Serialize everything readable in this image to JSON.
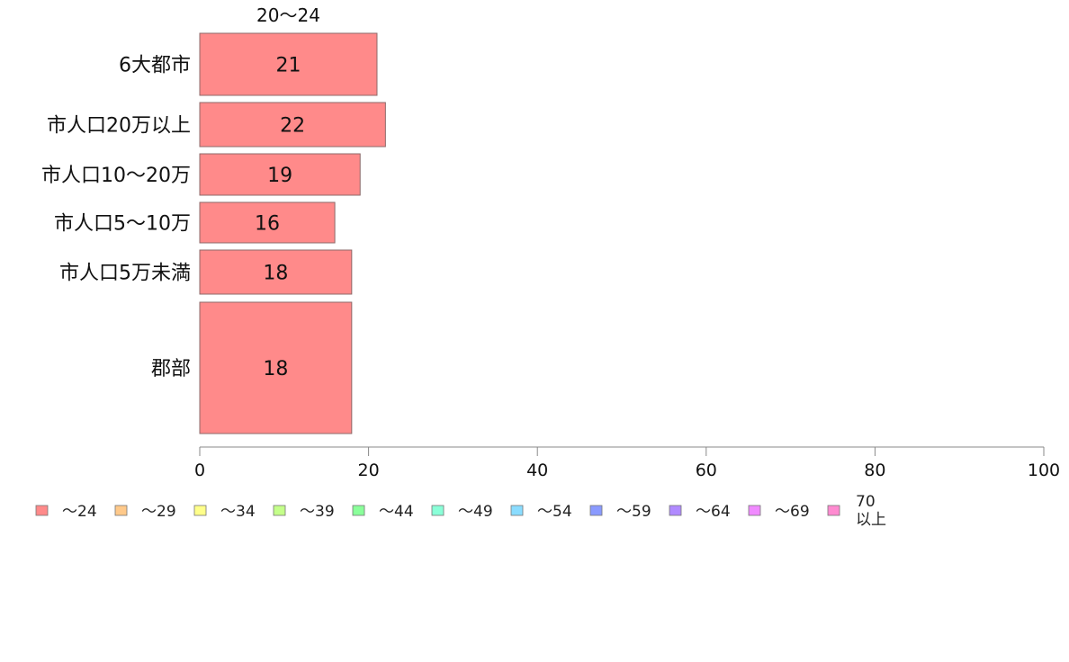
{
  "chart_data": {
    "type": "bar",
    "orientation": "horizontal",
    "title": "20〜24",
    "categories": [
      "6大都市",
      "市人口20万以上",
      "市人口10〜20万",
      "市人口5〜10万",
      "市人口5万未満",
      "郡部"
    ],
    "series": [
      {
        "name": "〜24",
        "values": [
          21,
          22,
          19,
          16,
          18,
          18
        ]
      }
    ],
    "xlim": [
      0,
      100
    ],
    "xticks": [
      0,
      20,
      40,
      60,
      80,
      100
    ],
    "grid": false,
    "legend_position": "bottom",
    "legend": [
      "〜24",
      "〜29",
      "〜34",
      "〜39",
      "〜44",
      "〜49",
      "〜54",
      "〜59",
      "〜64",
      "〜69",
      "70 以上"
    ],
    "legend_colors": [
      "#ff8a8a",
      "#ffc98a",
      "#ffff8a",
      "#c4ff8a",
      "#8aff9a",
      "#8affd8",
      "#8adcff",
      "#8a9aff",
      "#b08aff",
      "#f08aff",
      "#ff8ad0"
    ],
    "bar_color": "#ff8a8a"
  }
}
